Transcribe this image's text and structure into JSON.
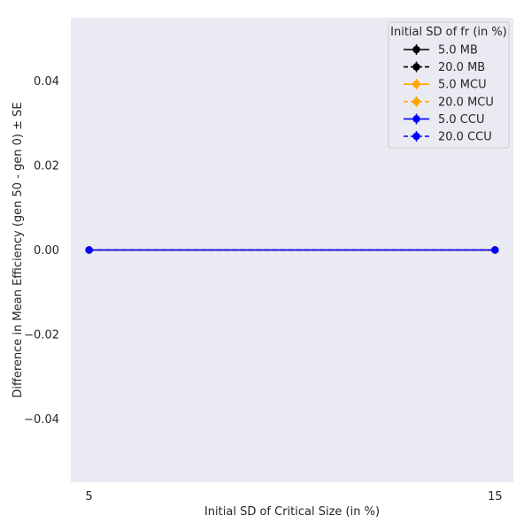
{
  "chart_data": {
    "type": "line",
    "title": "",
    "xlabel": "Initial SD of Critical Size (in %)",
    "ylabel": "Difference in Mean Efficiency (gen 50 - gen 0) ± SE",
    "x": [
      5,
      15
    ],
    "x_ticks": [
      "5",
      "15"
    ],
    "y_ticks": [
      {
        "value": 0.04,
        "label": "0.04"
      },
      {
        "value": 0.02,
        "label": "0.02"
      },
      {
        "value": 0.0,
        "label": "0.00"
      },
      {
        "value": -0.02,
        "label": "−0.02"
      },
      {
        "value": -0.04,
        "label": "−0.04"
      }
    ],
    "xlim": [
      4.55,
      15.45
    ],
    "ylim": [
      -0.055,
      0.055
    ],
    "grid": false,
    "background": "#eaeaf2",
    "legend": {
      "title": "Initial SD of fr (in %)",
      "placement": "top-right"
    },
    "series": [
      {
        "name": "5.0 MB",
        "color": "#000000",
        "linestyle": "solid",
        "values": [
          0.0,
          0.0
        ]
      },
      {
        "name": "20.0 MB",
        "color": "#000000",
        "linestyle": "dashed",
        "values": [
          0.0,
          0.0
        ]
      },
      {
        "name": "5.0 MCU",
        "color": "#ffa500",
        "linestyle": "solid",
        "values": [
          0.0,
          0.0
        ]
      },
      {
        "name": "20.0 MCU",
        "color": "#ffa500",
        "linestyle": "dashed",
        "values": [
          0.0,
          0.0
        ]
      },
      {
        "name": "5.0 CCU",
        "color": "#0000ff",
        "linestyle": "solid",
        "values": [
          0.0,
          0.0
        ]
      },
      {
        "name": "20.0 CCU",
        "color": "#0000ff",
        "linestyle": "dashed",
        "values": [
          0.0,
          0.0
        ]
      }
    ]
  }
}
